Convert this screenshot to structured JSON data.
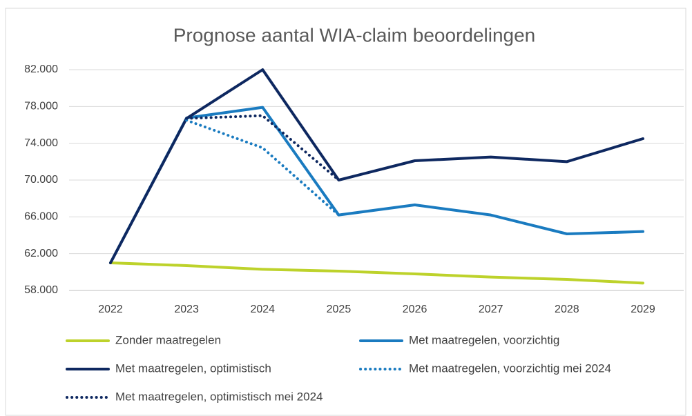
{
  "chart_data": {
    "type": "line",
    "title": "Prognose aantal WIA-claim beoordelingen",
    "categories": [
      "2022",
      "2023",
      "2024",
      "2025",
      "2026",
      "2027",
      "2028",
      "2029"
    ],
    "series": [
      {
        "name": "Zonder maatregelen",
        "color": "#bdd22b",
        "line_style": "solid",
        "values": [
          61000,
          60700,
          60300,
          60100,
          59800,
          59450,
          59200,
          58800
        ]
      },
      {
        "name": "Met maatregelen, voorzichtig",
        "color": "#1a7bc0",
        "line_style": "solid",
        "values": [
          61000,
          76750,
          77900,
          66200,
          67300,
          66200,
          64150,
          64400
        ]
      },
      {
        "name": "Met maatregelen, optimistisch",
        "color": "#0e2860",
        "line_style": "solid",
        "values": [
          61000,
          76700,
          82000,
          70000,
          72100,
          72500,
          72000,
          74500
        ]
      },
      {
        "name": "Met maatregelen, voorzichtig mei 2024",
        "color": "#1a7bc0",
        "line_style": "dotted",
        "values": [
          null,
          76500,
          73500,
          66200,
          null,
          null,
          null,
          null
        ]
      },
      {
        "name": "Met maatregelen, optimistisch mei 2024",
        "color": "#0e2860",
        "line_style": "dotted",
        "values": [
          null,
          76700,
          77000,
          70000,
          null,
          null,
          null,
          null
        ]
      }
    ],
    "ylim": [
      58000,
      82000
    ],
    "yticks": [
      {
        "value": 58000,
        "label": "58.000"
      },
      {
        "value": 62000,
        "label": "62.000"
      },
      {
        "value": 66000,
        "label": "66.000"
      },
      {
        "value": 70000,
        "label": "70.000"
      },
      {
        "value": 74000,
        "label": "74.000"
      },
      {
        "value": 78000,
        "label": "78.000"
      },
      {
        "value": 82000,
        "label": "82.000"
      }
    ],
    "grid": true,
    "legend": "bottom"
  }
}
